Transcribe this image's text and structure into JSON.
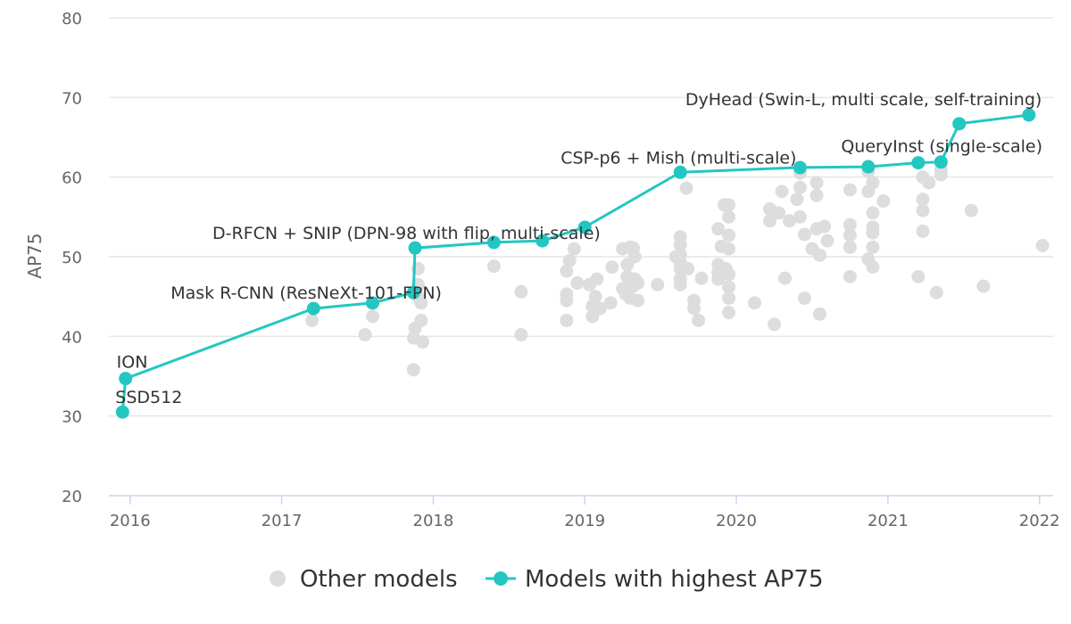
{
  "chart_data": {
    "type": "scatter",
    "title": "",
    "xlabel": "",
    "ylabel": "AP75",
    "xlim": [
      2015.86,
      2022.09
    ],
    "ylim": [
      20,
      80
    ],
    "x_ticks": [
      2016,
      2017,
      2018,
      2019,
      2020,
      2021,
      2022
    ],
    "y_ticks": [
      20,
      30,
      40,
      50,
      60,
      70,
      80
    ],
    "grid": "horizontal",
    "legend_position": "bottom",
    "colors": {
      "other": "#dddddd",
      "best": "#22c7c2",
      "grid": "#e6e6e6",
      "axis": "#ccd6eb"
    },
    "series": [
      {
        "name": "Other models",
        "points": [
          [
            2017.2,
            42.0
          ],
          [
            2017.55,
            40.2
          ],
          [
            2017.6,
            42.5
          ],
          [
            2017.87,
            35.8
          ],
          [
            2017.87,
            39.8
          ],
          [
            2017.88,
            41.0
          ],
          [
            2017.9,
            48.5
          ],
          [
            2017.9,
            46.5
          ],
          [
            2017.9,
            45.0
          ],
          [
            2017.92,
            44.2
          ],
          [
            2017.92,
            42.0
          ],
          [
            2017.93,
            39.3
          ],
          [
            2018.4,
            48.8
          ],
          [
            2018.58,
            45.6
          ],
          [
            2018.58,
            40.2
          ],
          [
            2018.88,
            42.0
          ],
          [
            2018.88,
            44.5
          ],
          [
            2018.88,
            45.3
          ],
          [
            2018.88,
            48.2
          ],
          [
            2018.9,
            49.5
          ],
          [
            2018.93,
            51.0
          ],
          [
            2018.95,
            46.7
          ],
          [
            2019.03,
            46.5
          ],
          [
            2019.05,
            42.5
          ],
          [
            2019.05,
            43.8
          ],
          [
            2019.07,
            45.0
          ],
          [
            2019.08,
            47.2
          ],
          [
            2019.1,
            43.5
          ],
          [
            2019.17,
            44.2
          ],
          [
            2019.18,
            48.7
          ],
          [
            2019.25,
            51.0
          ],
          [
            2019.25,
            46.0
          ],
          [
            2019.27,
            45.3
          ],
          [
            2019.28,
            47.5
          ],
          [
            2019.28,
            49.0
          ],
          [
            2019.3,
            44.8
          ],
          [
            2019.3,
            51.2
          ],
          [
            2019.32,
            46.3
          ],
          [
            2019.33,
            50.0
          ],
          [
            2019.33,
            47.2
          ],
          [
            2019.35,
            44.5
          ],
          [
            2019.35,
            46.7
          ],
          [
            2019.32,
            51.1
          ],
          [
            2019.48,
            46.5
          ],
          [
            2019.63,
            52.5
          ],
          [
            2019.63,
            51.5
          ],
          [
            2019.63,
            50.3
          ],
          [
            2019.63,
            49.3
          ],
          [
            2019.63,
            48.5
          ],
          [
            2019.63,
            47.2
          ],
          [
            2019.63,
            46.5
          ],
          [
            2019.68,
            48.5
          ],
          [
            2019.72,
            44.5
          ],
          [
            2019.72,
            43.5
          ],
          [
            2019.75,
            42.0
          ],
          [
            2019.77,
            47.3
          ],
          [
            2019.6,
            50.0
          ],
          [
            2019.67,
            58.6
          ],
          [
            2019.88,
            53.5
          ],
          [
            2019.88,
            49.0
          ],
          [
            2019.88,
            48.0
          ],
          [
            2019.88,
            47.2
          ],
          [
            2019.9,
            51.3
          ],
          [
            2019.92,
            56.5
          ],
          [
            2019.93,
            48.5
          ],
          [
            2019.95,
            56.5
          ],
          [
            2019.95,
            55.0
          ],
          [
            2019.95,
            52.7
          ],
          [
            2019.95,
            51.0
          ],
          [
            2019.95,
            47.8
          ],
          [
            2019.95,
            46.2
          ],
          [
            2019.95,
            44.8
          ],
          [
            2019.95,
            43.0
          ],
          [
            2020.12,
            44.2
          ],
          [
            2020.22,
            56.0
          ],
          [
            2020.22,
            54.5
          ],
          [
            2020.25,
            41.5
          ],
          [
            2020.28,
            55.5
          ],
          [
            2020.3,
            58.2
          ],
          [
            2020.32,
            47.3
          ],
          [
            2020.35,
            54.5
          ],
          [
            2020.4,
            57.2
          ],
          [
            2020.42,
            60.5
          ],
          [
            2020.42,
            58.7
          ],
          [
            2020.42,
            55.0
          ],
          [
            2020.45,
            52.8
          ],
          [
            2020.45,
            44.8
          ],
          [
            2020.5,
            51.0
          ],
          [
            2020.53,
            59.3
          ],
          [
            2020.53,
            57.7
          ],
          [
            2020.53,
            53.5
          ],
          [
            2020.55,
            50.2
          ],
          [
            2020.55,
            42.8
          ],
          [
            2020.58,
            53.8
          ],
          [
            2020.6,
            52.0
          ],
          [
            2020.75,
            58.4
          ],
          [
            2020.75,
            54.0
          ],
          [
            2020.75,
            52.7
          ],
          [
            2020.75,
            51.2
          ],
          [
            2020.75,
            47.5
          ],
          [
            2020.87,
            60.7
          ],
          [
            2020.87,
            58.2
          ],
          [
            2020.87,
            49.7
          ],
          [
            2020.9,
            59.3
          ],
          [
            2020.9,
            55.5
          ],
          [
            2020.9,
            53.7
          ],
          [
            2020.9,
            53.0
          ],
          [
            2020.9,
            51.2
          ],
          [
            2020.9,
            48.7
          ],
          [
            2020.97,
            57.0
          ],
          [
            2021.2,
            47.5
          ],
          [
            2021.23,
            60.0
          ],
          [
            2021.23,
            57.2
          ],
          [
            2021.23,
            55.8
          ],
          [
            2021.23,
            53.2
          ],
          [
            2021.27,
            59.3
          ],
          [
            2021.32,
            45.5
          ],
          [
            2021.35,
            61.0
          ],
          [
            2021.35,
            60.3
          ],
          [
            2021.55,
            55.8
          ],
          [
            2021.63,
            46.3
          ],
          [
            2022.02,
            51.4
          ]
        ]
      },
      {
        "name": "Models with highest AP75",
        "points": [
          [
            2015.95,
            30.5
          ],
          [
            2015.97,
            34.7
          ],
          [
            2017.21,
            43.5
          ],
          [
            2017.6,
            44.2
          ],
          [
            2017.87,
            45.5
          ],
          [
            2017.88,
            51.1
          ],
          [
            2018.4,
            51.8
          ],
          [
            2018.72,
            52.0
          ],
          [
            2019.0,
            53.7
          ],
          [
            2019.63,
            60.6
          ],
          [
            2020.42,
            61.2
          ],
          [
            2020.87,
            61.3
          ],
          [
            2021.2,
            61.8
          ],
          [
            2021.35,
            61.9
          ],
          [
            2021.47,
            66.7
          ],
          [
            2021.93,
            67.8
          ]
        ]
      }
    ],
    "annotations": [
      {
        "text": "SSD512",
        "x": 2015.95,
        "y": 30.5
      },
      {
        "text": "ION",
        "x": 2015.97,
        "y": 34.7
      },
      {
        "text": "Mask R-CNN (ResNeXt-101-FPN)",
        "x": 2017.21,
        "y": 43.5
      },
      {
        "text": "D-RFCN + SNIP (DPN-98 with flip, multi-scale)",
        "x": 2017.88,
        "y": 51.1
      },
      {
        "text": "CSP-p6 + Mish (multi-scale)",
        "x": 2019.63,
        "y": 60.6
      },
      {
        "text": "QueryInst (single-scale)",
        "x": 2021.35,
        "y": 61.9
      },
      {
        "text": "DyHead (Swin-L, multi scale, self-training)",
        "x": 2021.93,
        "y": 67.8
      }
    ]
  }
}
